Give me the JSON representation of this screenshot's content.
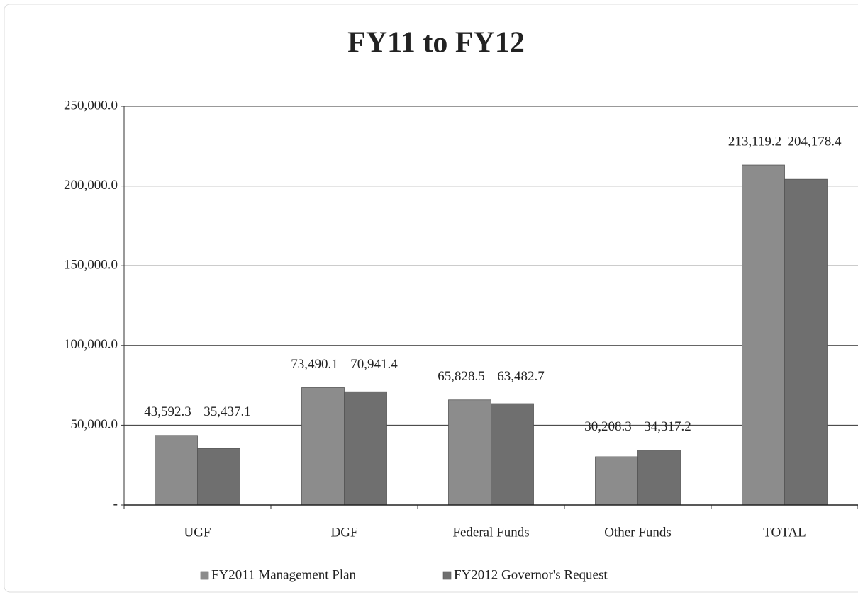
{
  "chart_data": {
    "type": "bar",
    "title": "FY11 to FY12",
    "categories": [
      "UGF",
      "DGF",
      "Federal Funds",
      "Other Funds",
      "TOTAL"
    ],
    "series": [
      {
        "name": "FY2011 Management Plan",
        "color": "#8c8c8c",
        "values": [
          43592.3,
          73490.1,
          65828.5,
          30208.3,
          213119.2
        ],
        "value_labels": [
          "43,592.3",
          "73,490.1",
          "65,828.5",
          "30,208.3",
          "213,119.2"
        ]
      },
      {
        "name": "FY2012 Governor's Request",
        "color": "#6f6f6f",
        "values": [
          35437.1,
          70941.4,
          63482.7,
          34317.2,
          204178.4
        ],
        "value_labels": [
          "35,437.1",
          "70,941.4",
          "63,482.7",
          "34,317.2",
          "204,178.4"
        ]
      }
    ],
    "ylim": [
      0,
      250000
    ],
    "yticks": [
      {
        "value": 0,
        "label": "-"
      },
      {
        "value": 50000,
        "label": "50,000.0"
      },
      {
        "value": 100000,
        "label": "100,000.0"
      },
      {
        "value": 150000,
        "label": "150,000.0"
      },
      {
        "value": 200000,
        "label": "200,000.0"
      },
      {
        "value": 250000,
        "label": "250,000.0"
      }
    ],
    "grid": true,
    "legend": "bottom"
  }
}
